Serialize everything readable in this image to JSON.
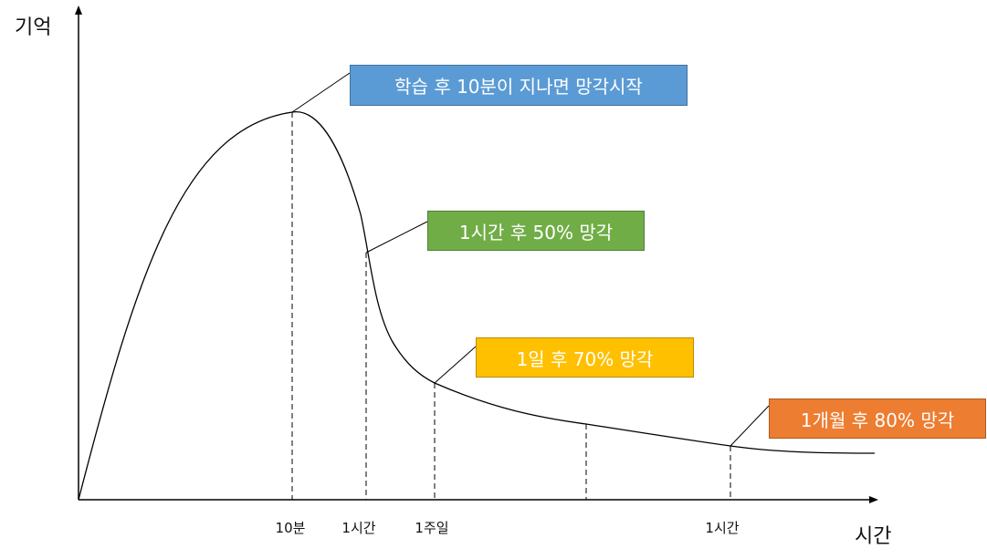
{
  "chart_data": {
    "type": "line",
    "title": "",
    "xlabel": "시간",
    "ylabel": "기억",
    "tick_labels": [
      "10분",
      "1시간",
      "1주일",
      "",
      "1시간"
    ],
    "annotations": [
      {
        "text": "학습 후 10분이 지나면 망각시작",
        "color": "#5B9BD5",
        "text_color": "#ffffff"
      },
      {
        "text": "1시간 후 50% 망각",
        "color": "#70AD47",
        "text_color": "#ffffff"
      },
      {
        "text": "1일 후 70% 망각",
        "color": "#FFC000",
        "text_color": "#ffffff"
      },
      {
        "text": "1개월 후 80% 망각",
        "color": "#ED7D31",
        "text_color": "#ffffff"
      }
    ],
    "curve": "memory rises to a peak at 10분, then drops steeply and flattens out (forgetting curve)",
    "grid": false,
    "legend": "none"
  }
}
